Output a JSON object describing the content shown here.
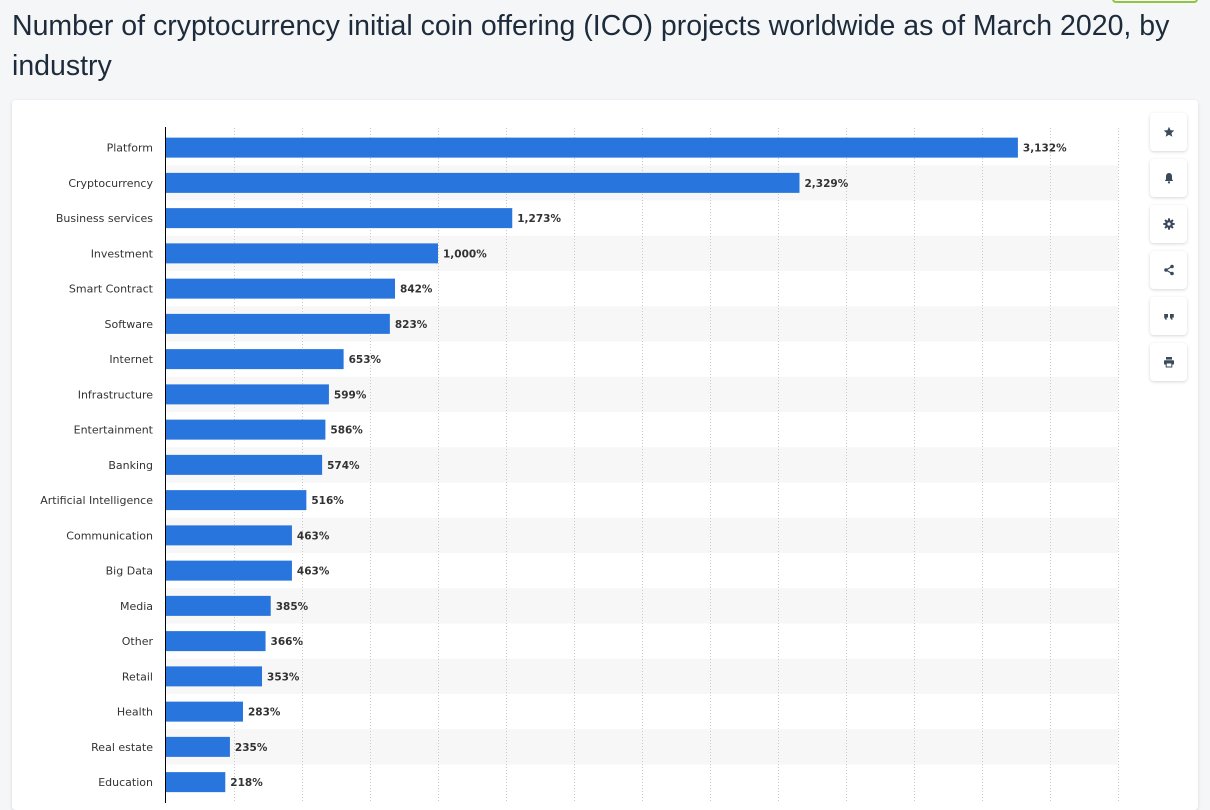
{
  "page": {
    "title": "Number of cryptocurrency initial coin offering (ICO) projects worldwide as of March 2020, by industry"
  },
  "toolbar": {
    "buttons": [
      {
        "name": "star-icon"
      },
      {
        "name": "bell-icon"
      },
      {
        "name": "gear-icon"
      },
      {
        "name": "share-icon"
      },
      {
        "name": "quote-icon"
      },
      {
        "name": "print-icon"
      }
    ]
  },
  "colors": {
    "bar": "#2876dd",
    "stripe": "#f7f7f7",
    "grid": "#c9c9c9",
    "axis": "#000000"
  },
  "chart_data": {
    "type": "bar",
    "orientation": "horizontal",
    "categories": [
      "Platform",
      "Cryptocurrency",
      "Business services",
      "Investment",
      "Smart Contract",
      "Software",
      "Internet",
      "Infrastructure",
      "Entertainment",
      "Banking",
      "Artificial Intelligence",
      "Communication",
      "Big Data",
      "Media",
      "Other",
      "Retail",
      "Health",
      "Real estate",
      "Education"
    ],
    "values": [
      3132,
      2329,
      1273,
      1000,
      842,
      823,
      653,
      599,
      586,
      574,
      516,
      463,
      463,
      385,
      366,
      353,
      283,
      235,
      218
    ],
    "value_labels": [
      "3,132%",
      "2,329%",
      "1,273%",
      "1,000%",
      "842%",
      "823%",
      "653%",
      "599%",
      "586%",
      "574%",
      "516%",
      "463%",
      "463%",
      "385%",
      "366%",
      "353%",
      "283%",
      "235%",
      "218%"
    ],
    "xlim": [
      0,
      3500
    ],
    "grid": true,
    "grid_style": "dotted-vertical"
  }
}
